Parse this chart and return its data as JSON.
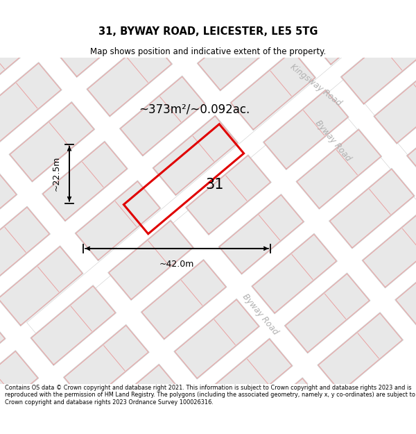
{
  "title": "31, BYWAY ROAD, LEICESTER, LE5 5TG",
  "subtitle": "Map shows position and indicative extent of the property.",
  "footer": "Contains OS data © Crown copyright and database right 2021. This information is subject to Crown copyright and database rights 2023 and is reproduced with the permission of HM Land Registry. The polygons (including the associated geometry, namely x, y co-ordinates) are subject to Crown copyright and database rights 2023 Ordnance Survey 100026316.",
  "area_label": "~373m²/~0.092ac.",
  "width_label": "~42.0m",
  "height_label": "~22.5m",
  "property_number": "31",
  "map_bg": "#ffffff",
  "building_fill": "#e8e8e8",
  "building_edge": "#c8c8c8",
  "pink_line_color": "#e8a0a0",
  "red_outline_color": "#e00000",
  "road_label_color": "#b0b0b0",
  "title_color": "#000000",
  "footer_color": "#000000"
}
